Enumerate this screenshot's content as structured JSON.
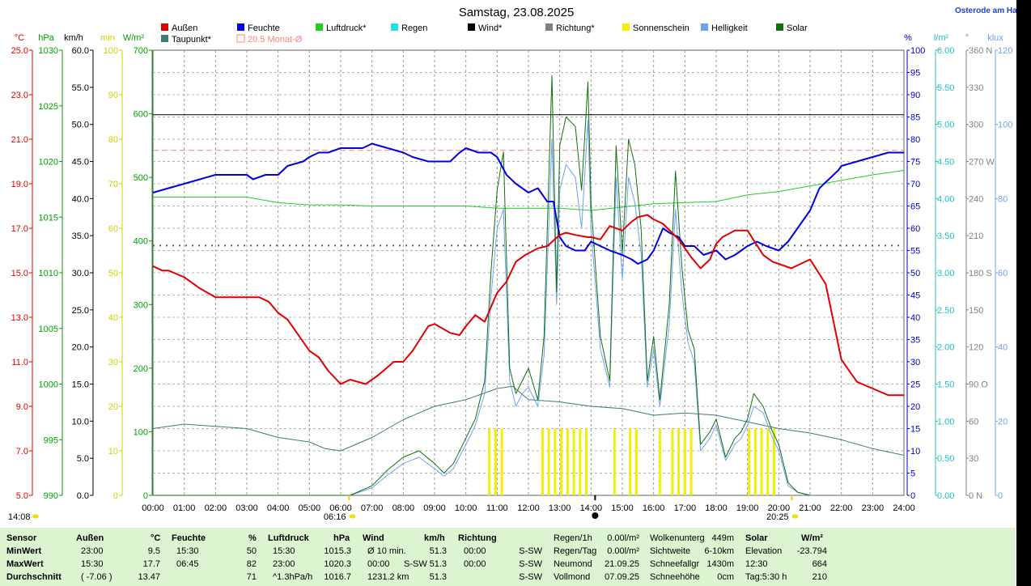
{
  "title": "Samstag, 23.08.2025",
  "location": "Osterode am Ha",
  "legend": [
    {
      "label": "Außen",
      "color": "#e00000"
    },
    {
      "label": "Feuchte",
      "color": "#0000e0"
    },
    {
      "label": "Luftdruck*",
      "color": "#20d020"
    },
    {
      "label": "Regen",
      "color": "#20e0e0"
    },
    {
      "label": "Wind*",
      "color": "#000000"
    },
    {
      "label": "Richtung*",
      "color": "#808080"
    },
    {
      "label": "Sonnenschein",
      "color": "#f0f000"
    },
    {
      "label": "Helligkeit",
      "color": "#6fa0f0"
    },
    {
      "label": "Solar",
      "color": "#107010"
    },
    {
      "label": "Taupunkt*",
      "color": "#407878"
    },
    {
      "label": "20.5 Monat-Ø",
      "color": "#ff8080"
    }
  ],
  "axes": {
    "temp": {
      "unit": "°C",
      "color": "#e00000",
      "ticks": [
        "25.0",
        "23.0",
        "21.0",
        "19.0",
        "17.0",
        "15.0",
        "13.0",
        "11.0",
        "9.0",
        "7.0",
        "5.0"
      ]
    },
    "press": {
      "unit": "hPa",
      "color": "#00a000",
      "ticks": [
        "1030",
        "1025",
        "1020",
        "1015",
        "1010",
        "1005",
        "1000",
        "995",
        "990"
      ]
    },
    "wind": {
      "unit": "km/h",
      "color": "#000000",
      "ticks": [
        "60.0",
        "55.0",
        "50.0",
        "45.0",
        "40.0",
        "35.0",
        "30.0",
        "25.0",
        "20.0",
        "15.0",
        "10.0",
        "5.0",
        "0.0"
      ]
    },
    "sun": {
      "unit": "min",
      "color": "#d0d000",
      "ticks": [
        "100",
        "90",
        "80",
        "70",
        "60",
        "50",
        "40",
        "30",
        "20",
        "10",
        "0"
      ]
    },
    "solar": {
      "unit": "W/m²",
      "color": "#00a000",
      "ticks": [
        "700",
        "600",
        "500",
        "400",
        "300",
        "200",
        "100",
        "0"
      ]
    },
    "hum": {
      "unit": "%",
      "color": "#0000c0",
      "ticks": [
        "100",
        "95",
        "90",
        "85",
        "80",
        "75",
        "70",
        "65",
        "60",
        "55",
        "50",
        "45",
        "40",
        "35",
        "30",
        "25",
        "20",
        "15",
        "10",
        "5",
        "0"
      ]
    },
    "rain": {
      "unit": "l/m²",
      "color": "#20c0c0",
      "ticks": [
        "6.00",
        "5.50",
        "5.00",
        "4.50",
        "4.00",
        "3.50",
        "3.00",
        "2.50",
        "2.00",
        "1.50",
        "1.00",
        "0.50",
        "0.00"
      ]
    },
    "dir": {
      "unit": "°",
      "color": "#808080",
      "ticks": [
        "360 N",
        "330",
        "300",
        "270 W",
        "240",
        "210",
        "180 S",
        "150",
        "120",
        "90  O",
        "60",
        "30",
        "0  N"
      ]
    },
    "lux": {
      "unit": "klux",
      "color": "#6fa0f0",
      "ticks": [
        "120",
        "100",
        "80",
        "60",
        "40",
        "20",
        "0"
      ]
    }
  },
  "x_ticks": [
    "00:00",
    "01:00",
    "02:00",
    "03:00",
    "04:00",
    "05:00",
    "06:00",
    "07:00",
    "08:00",
    "09:00",
    "10:00",
    "11:00",
    "12:00",
    "13:00",
    "14:00",
    "15:00",
    "16:00",
    "17:00",
    "18:00",
    "19:00",
    "20:00",
    "21:00",
    "22:00",
    "23:00",
    "24:00"
  ],
  "markers": {
    "current": "14:08",
    "sunrise": "06:16",
    "sunset": "20:25"
  },
  "chart_data": {
    "type": "line",
    "title": "Samstag, 23.08.2025",
    "x_unit": "hours",
    "x_range": [
      0,
      24
    ],
    "series": [
      {
        "name": "Außen",
        "axis": "temp",
        "color": "#e00000",
        "width": 2,
        "x": [
          0,
          0.3,
          0.5,
          1,
          1.5,
          2,
          3,
          3.4,
          3.7,
          4,
          4.3,
          5,
          5.3,
          5.6,
          6,
          6.3,
          6.8,
          7.2,
          7.7,
          8,
          8.3,
          8.8,
          9,
          9.5,
          9.8,
          10,
          10.3,
          10.6,
          11,
          11.3,
          11.6,
          11.9,
          12.3,
          12.6,
          13,
          13.2,
          13.5,
          13.9,
          14,
          14.3,
          14.6,
          15,
          15.3,
          15.5,
          15.8,
          16,
          16.3,
          16.8,
          17.2,
          17.5,
          17.8,
          18,
          18.2,
          18.6,
          19,
          19.5,
          19.8,
          20,
          20.4,
          21,
          21.5,
          22,
          22.5,
          23,
          23.5,
          24
        ],
        "y": [
          15.3,
          15.1,
          15.1,
          14.8,
          14.3,
          13.9,
          13.9,
          13.9,
          13.7,
          13.2,
          12.9,
          11.5,
          11.2,
          10.6,
          10.0,
          10.2,
          10.0,
          10.4,
          11.0,
          11.0,
          11.5,
          12.6,
          12.7,
          12.3,
          12.2,
          12.6,
          13.1,
          12.8,
          14.1,
          14.6,
          15.5,
          15.8,
          16.1,
          16.2,
          16.7,
          16.8,
          16.7,
          16.6,
          16.6,
          16.5,
          17.1,
          16.9,
          17.3,
          17.5,
          17.6,
          17.4,
          17.2,
          16.5,
          15.7,
          15.2,
          15.6,
          16.3,
          16.6,
          16.9,
          16.9,
          15.8,
          15.5,
          15.4,
          15.2,
          15.6,
          14.5,
          11.1,
          10.1,
          9.8,
          9.5,
          9.5
        ]
      },
      {
        "name": "Feuchte",
        "axis": "hum",
        "color": "#0000e0",
        "width": 2,
        "x": [
          0,
          0.5,
          1,
          1.5,
          2,
          2.5,
          3,
          3.2,
          3.6,
          4,
          4.3,
          4.8,
          5,
          5.3,
          5.6,
          6,
          6.3,
          6.7,
          7,
          7.5,
          8,
          8.3,
          8.8,
          9,
          9.5,
          9.8,
          10,
          10.4,
          10.8,
          11,
          11.3,
          11.6,
          12,
          12.3,
          12.6,
          12.8,
          13,
          13.2,
          13.5,
          13.8,
          14,
          14.3,
          14.6,
          15,
          15.3,
          15.5,
          15.8,
          16,
          16.3,
          16.5,
          16.8,
          17,
          17.3,
          17.6,
          18,
          18.3,
          18.6,
          19,
          19.3,
          19.6,
          20,
          20.3,
          20.6,
          21,
          21.3,
          21.6,
          21.9,
          22,
          22.5,
          23,
          23.5,
          24
        ],
        "y": [
          68,
          69,
          70,
          71,
          72,
          72,
          72,
          71,
          72,
          72,
          74,
          75,
          76,
          77,
          77,
          78,
          78,
          78,
          79,
          78,
          77,
          76,
          75,
          75,
          75,
          77,
          78,
          77,
          77,
          76,
          72,
          70,
          68,
          69,
          66,
          66,
          58,
          56,
          55,
          55,
          57,
          56,
          55,
          54,
          53,
          52,
          53,
          55,
          60,
          59,
          58,
          56,
          56,
          54,
          55,
          53,
          54,
          56,
          57,
          56,
          55,
          57,
          60,
          64,
          69,
          71,
          73,
          74,
          75,
          76,
          77,
          77
        ]
      },
      {
        "name": "Luftdruck*",
        "axis": "press",
        "color": "#20d020",
        "width": 1,
        "x": [
          0,
          1,
          2,
          3,
          4,
          5,
          6,
          7,
          8,
          9,
          10,
          11,
          12,
          13,
          14,
          15,
          16,
          17,
          18,
          19,
          20,
          21,
          22,
          23,
          24
        ],
        "y": [
          1016.8,
          1016.8,
          1016.8,
          1016.8,
          1016.3,
          1016.1,
          1016.1,
          1016.0,
          1016.0,
          1016.0,
          1016.0,
          1015.8,
          1015.8,
          1015.8,
          1015.6,
          1015.9,
          1016.2,
          1016.3,
          1016.4,
          1017.0,
          1017.3,
          1017.8,
          1018.3,
          1018.8,
          1019.2
        ]
      },
      {
        "name": "Taupunkt*",
        "axis": "temp",
        "color": "#407878",
        "width": 1,
        "x": [
          0,
          1,
          2,
          3,
          4,
          5,
          5.5,
          6,
          7,
          8,
          9,
          10,
          11,
          11.5,
          12,
          13,
          14,
          15,
          16,
          17,
          18,
          19,
          20,
          21,
          22,
          23,
          24
        ],
        "y": [
          8.0,
          8.2,
          8.1,
          8.0,
          7.6,
          7.4,
          7.1,
          7.0,
          7.6,
          8.4,
          9.0,
          9.3,
          9.8,
          9.9,
          9.3,
          9.2,
          9.0,
          8.9,
          8.6,
          8.7,
          8.6,
          8.3,
          8.0,
          7.8,
          7.5,
          7.1,
          6.8
        ]
      },
      {
        "name": "Solar",
        "axis": "solar",
        "color": "#107010",
        "width": 1,
        "x": [
          0,
          6.3,
          7,
          7.5,
          8,
          8.5,
          9,
          9.3,
          9.6,
          10,
          10.3,
          10.6,
          10.8,
          11,
          11.2,
          11.4,
          11.6,
          11.8,
          12,
          12.3,
          12.5,
          12.75,
          12.9,
          13,
          13.2,
          13.5,
          13.7,
          13.9,
          14,
          14.3,
          14.6,
          14.8,
          15,
          15.2,
          15.4,
          15.6,
          15.8,
          16,
          16.2,
          16.5,
          16.7,
          16.9,
          17.1,
          17.3,
          17.5,
          17.8,
          18,
          18.3,
          18.6,
          18.8,
          19,
          19.2,
          19.5,
          19.8,
          20,
          20.3,
          20.6,
          21
        ],
        "y": [
          0,
          0,
          15,
          40,
          60,
          70,
          50,
          35,
          50,
          90,
          120,
          180,
          350,
          480,
          540,
          200,
          160,
          180,
          200,
          150,
          250,
          660,
          320,
          550,
          595,
          580,
          480,
          650,
          460,
          250,
          180,
          550,
          380,
          560,
          520,
          420,
          180,
          250,
          150,
          300,
          510,
          360,
          260,
          230,
          80,
          100,
          120,
          60,
          90,
          100,
          120,
          160,
          140,
          100,
          80,
          20,
          5,
          0
        ]
      },
      {
        "name": "Helligkeit",
        "axis": "solar",
        "color": "#6fa0f0",
        "width": 1,
        "x": [
          0,
          6.3,
          7,
          7.5,
          8,
          8.5,
          9,
          9.3,
          9.6,
          10,
          10.3,
          10.6,
          10.8,
          11,
          11.2,
          11.4,
          11.6,
          11.8,
          12,
          12.3,
          12.5,
          12.75,
          12.9,
          13,
          13.2,
          13.5,
          13.7,
          13.9,
          14,
          14.3,
          14.6,
          14.8,
          15,
          15.2,
          15.4,
          15.6,
          15.8,
          16,
          16.2,
          16.5,
          16.7,
          16.9,
          17.1,
          17.3,
          17.5,
          17.8,
          18,
          18.3,
          18.6,
          18.8,
          19,
          19.2,
          19.5,
          19.8,
          20,
          20.3,
          20.6,
          21
        ],
        "y": [
          0,
          0,
          12,
          32,
          50,
          60,
          42,
          30,
          42,
          80,
          110,
          160,
          310,
          420,
          450,
          180,
          140,
          160,
          170,
          140,
          220,
          560,
          300,
          480,
          520,
          500,
          420,
          590,
          420,
          230,
          170,
          500,
          340,
          500,
          460,
          380,
          170,
          230,
          140,
          270,
          450,
          320,
          240,
          210,
          70,
          90,
          110,
          55,
          80,
          90,
          110,
          140,
          130,
          90,
          70,
          15,
          5,
          0
        ]
      }
    ],
    "sunshine_bars": {
      "axis": "sun",
      "color": "#f0f000",
      "value": 15,
      "x": [
        10.75,
        10.95,
        11.15,
        12.45,
        12.65,
        12.85,
        13.05,
        13.25,
        13.45,
        13.65,
        13.85,
        14.75,
        15.25,
        15.45,
        16.2,
        16.6,
        16.8,
        17.0,
        17.2,
        19.05,
        19.25,
        19.45,
        19.65,
        19.85
      ]
    },
    "wind_gust_line": {
      "axis": "wind",
      "value": 51.3,
      "color": "#000000"
    },
    "month_avg_line": {
      "axis": "temp",
      "value": 20.5,
      "color": "#ff8080"
    },
    "direction_line": {
      "axis": "dir",
      "value": 202,
      "color": "#808080"
    },
    "current_time": 14.13,
    "sunrise": 6.27,
    "sunset": 20.42
  },
  "stats": {
    "headers": {
      "sensor": "Sensor",
      "aussen": "Außen",
      "aussen_u": "°C",
      "feuchte": "Feuchte",
      "feuchte_u": "%",
      "druck": "Luftdruck",
      "druck_u": "hPa",
      "wind": "Wind",
      "wind_u": "km/h",
      "richtung": "Richtung"
    },
    "rows": [
      {
        "label": "MinWert",
        "a_t": "23:00",
        "a_v": "9.5",
        "f_t": "15:30",
        "f_v": "50",
        "p_t": "15:30",
        "p_v": "1015.3",
        "w_t": "Ø 10 min.",
        "w_s": "",
        "w_v": "51.3",
        "r_t": "00:00",
        "r_v": "S-SW"
      },
      {
        "label": "MaxWert",
        "a_t": "15:30",
        "a_v": "17.7",
        "f_t": "06:45",
        "f_v": "82",
        "p_t": "23:00",
        "p_v": "1020.3",
        "w_t": "00:00",
        "w_s": "S-SW",
        "w_v": "51.3",
        "r_t": "00:00",
        "r_v": "S-SW"
      },
      {
        "label": "Durchschnitt",
        "a_t": "( -7.06 )",
        "a_v": "13.47",
        "f_t": "",
        "f_v": "71",
        "p_t": "^1.3hPa/h",
        "p_v": "1016.7",
        "w_t": "1231.2 km",
        "w_s": "",
        "w_v": "51.3",
        "r_t": "",
        "r_v": "S-SW"
      }
    ],
    "rain": [
      {
        "k": "Regen/1h",
        "v": "0.00l/m²"
      },
      {
        "k": "Regen/Tag",
        "v": "0.00l/m²"
      },
      {
        "k": "Neumond",
        "v": "21.09.25"
      },
      {
        "k": "Vollmond",
        "v": "07.09.25"
      }
    ],
    "weather": [
      {
        "k": "Wolkenunterg",
        "v": "449m"
      },
      {
        "k": "Sichtweite",
        "v": "6-10km"
      },
      {
        "k": "Schneefallgr",
        "v": "1430m"
      },
      {
        "k": "Schneehöhe",
        "v": "0cm"
      }
    ],
    "solar": {
      "title": "Solar",
      "unit": "W/m²",
      "rows": [
        {
          "k": "Elevation",
          "v": "-23.794"
        },
        {
          "k": "12:30",
          "v": "664"
        },
        {
          "k": "Tag:5:30 h",
          "v": "210"
        }
      ]
    }
  }
}
